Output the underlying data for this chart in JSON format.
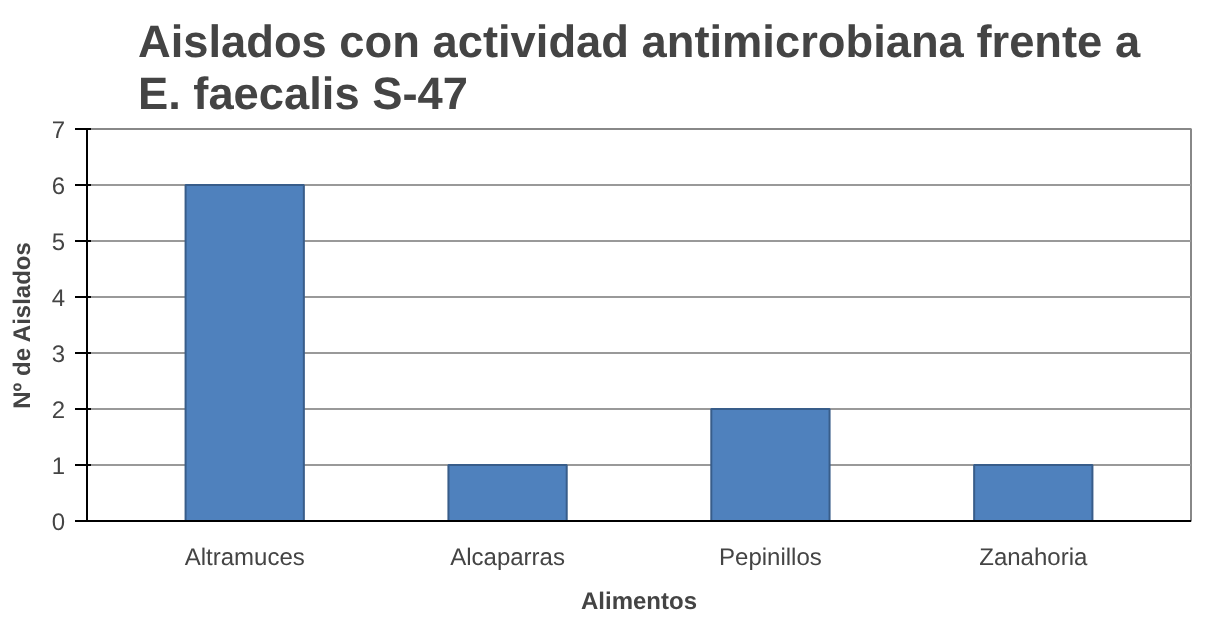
{
  "chart_data": {
    "type": "bar",
    "title": "Aislados con actividad antimicrobiana frente a\nE. faecalis S-47",
    "xlabel": "Alimentos",
    "ylabel": "Nº de Aislados",
    "categories": [
      "Altramuces",
      "Alcaparras",
      "Pepinillos",
      "Zanahoria"
    ],
    "values": [
      6,
      1,
      2,
      1
    ],
    "color": "#4f81bd",
    "ylim": [
      0,
      7
    ],
    "yticks": [
      0,
      1,
      2,
      3,
      4,
      5,
      6,
      7
    ],
    "grid": "y"
  }
}
